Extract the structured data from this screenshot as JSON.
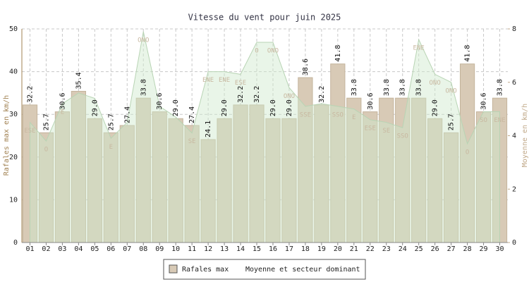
{
  "chart_data": {
    "type": "bar",
    "title": "Vitesse du vent pour juin 2025",
    "y_label": "Rafales max en km/h",
    "y2_label": "Moyenne en km/h",
    "categories": [
      "01",
      "02",
      "03",
      "04",
      "05",
      "06",
      "07",
      "08",
      "09",
      "10",
      "11",
      "12",
      "13",
      "14",
      "15",
      "16",
      "17",
      "18",
      "19",
      "20",
      "21",
      "22",
      "23",
      "24",
      "25",
      "26",
      "27",
      "28",
      "29",
      "30"
    ],
    "series": [
      {
        "name": "Rafales max",
        "color": "#d8cab6",
        "values": [
          32.2,
          25.7,
          30.6,
          35.4,
          29.0,
          25.7,
          27.4,
          33.8,
          30.6,
          29.0,
          27.4,
          24.1,
          29.0,
          32.2,
          32.2,
          29.0,
          29.0,
          38.6,
          32.2,
          41.8,
          33.8,
          30.6,
          33.8,
          33.8,
          33.8,
          29.0,
          25.7,
          41.8,
          30.6,
          33.8
        ],
        "value_labels": [
          "32.2",
          "25.7",
          "30.6",
          "35.4",
          "29.0",
          "25.7",
          "27.4",
          "33.8",
          "30.6",
          "29.0",
          "27.4",
          "24.1",
          "29.0",
          "32.2",
          "32.2",
          "29.0",
          "29.0",
          "38.6",
          "32.2",
          "41.8",
          "33.8",
          "30.6",
          "33.8",
          "33.8",
          "33.8",
          "29.0",
          "25.7",
          "41.8",
          "30.6",
          "33.8"
        ]
      },
      {
        "name": "Moyenne et secteur dominant",
        "color": "#cfe8cc",
        "axis": "y2",
        "values": [
          4.5,
          3.8,
          5.2,
          5.6,
          5.4,
          3.9,
          4.5,
          7.9,
          5.1,
          4.7,
          4.1,
          6.4,
          6.4,
          6.3,
          7.5,
          7.5,
          5.8,
          5.1,
          5.2,
          5.1,
          5.0,
          4.6,
          4.5,
          4.3,
          7.6,
          6.3,
          6.0,
          3.7,
          4.9,
          4.9
        ],
        "sectors": [
          "ESE",
          "O",
          "E",
          null,
          null,
          "E",
          null,
          "ONO",
          null,
          null,
          "SE",
          "ENE",
          "ENE",
          "ESE",
          "O",
          "ONO",
          "ONO",
          "SSE",
          null,
          "SSO",
          "E",
          "ESE",
          "SE",
          "SSO",
          "ENE",
          "ONO",
          "ONO",
          "O",
          "SO",
          "ENE"
        ]
      }
    ],
    "ylim": [
      0,
      50
    ],
    "yticks": [
      0,
      10,
      20,
      30,
      40,
      50
    ],
    "y2lim": [
      0,
      8
    ],
    "y2ticks": [
      0,
      2,
      4,
      6,
      8
    ],
    "grid": true
  }
}
